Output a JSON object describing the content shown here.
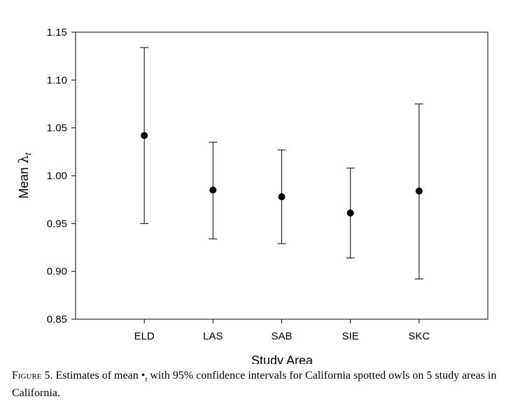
{
  "chart_data": {
    "type": "scatter",
    "error_bars": true,
    "categories": [
      "ELD",
      "LAS",
      "SAB",
      "SIE",
      "SKC"
    ],
    "series": [
      {
        "values": [
          1.042,
          0.985,
          0.978,
          0.961,
          0.984
        ],
        "lower": [
          0.95,
          0.934,
          0.929,
          0.914,
          0.892
        ],
        "upper": [
          1.134,
          1.035,
          1.027,
          1.008,
          1.075
        ]
      }
    ],
    "y_ticks": [
      "0.85",
      "0.90",
      "0.95",
      "1.00",
      "1.05",
      "1.10",
      "1.15"
    ],
    "ylim": [
      0.85,
      1.15
    ],
    "ylabel_prefix": "Mean ",
    "ylabel_symbol": "λ",
    "ylabel_subscript": "t",
    "xlabel": "Study Area",
    "grid": false,
    "marker_color": "#000000"
  },
  "caption": {
    "label": "Figure 5.",
    "text_before_symbol": " Estimates of mean ",
    "symbol": "•",
    "subscript": "t",
    "text_after": " with 95% confidence intervals for California spotted owls on 5 study areas in California."
  }
}
